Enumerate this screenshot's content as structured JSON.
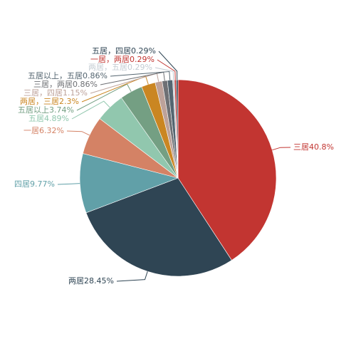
{
  "chart_data": {
    "type": "pie",
    "slices": [
      {
        "label": "三居",
        "value": 40.8,
        "text": "三居40.8%",
        "color": "#c23531"
      },
      {
        "label": "两居",
        "value": 28.45,
        "text": "两居28.45%",
        "color": "#2f4554"
      },
      {
        "label": "四居",
        "value": 9.77,
        "text": "四居9.77%",
        "color": "#61a0a8"
      },
      {
        "label": "一居",
        "value": 6.32,
        "text": "一居6.32%",
        "color": "#d48265"
      },
      {
        "label": "五居",
        "value": 4.89,
        "text": "五居4.89%",
        "color": "#91c7ae"
      },
      {
        "label": "五居以上",
        "value": 3.74,
        "text": "五居以上3.74%",
        "color": "#749f83"
      },
      {
        "label": "两居，三居",
        "value": 2.3,
        "text": "两居，三居2.3%",
        "color": "#ca8622"
      },
      {
        "label": "三居，四居",
        "value": 1.15,
        "text": "三居，四居1.15%",
        "color": "#bda29a"
      },
      {
        "label": "三居，两居",
        "value": 0.86,
        "text": "三居，两居0.86%",
        "color": "#6e7074"
      },
      {
        "label": "五居以上，五居",
        "value": 0.86,
        "text": "五居以上，五居0.86%",
        "color": "#546570"
      },
      {
        "label": "两居，五居",
        "value": 0.29,
        "text": "两居，五居0.29%",
        "color": "#c4ccd3"
      },
      {
        "label": "一居，两居",
        "value": 0.29,
        "text": "一居，两居0.29%",
        "color": "#c23531"
      },
      {
        "label": "五居，四居",
        "value": 0.29,
        "text": "五居，四居0.29%",
        "color": "#2f4554"
      }
    ]
  }
}
